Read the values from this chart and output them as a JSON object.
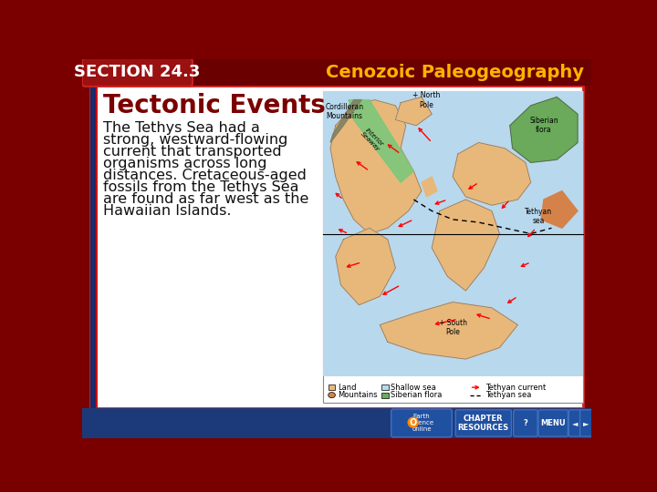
{
  "title_header": "Cenozoic Paleogeography",
  "section_label": "SECTION 24.3",
  "header_bg": "#6B0000",
  "header_text_color": "#FFB300",
  "section_text_color": "#FFFFFF",
  "slide_title": "Tectonic Events",
  "slide_title_color": "#7B0000",
  "body_text_lines": [
    "The Tethys Sea had a",
    "strong, westward-flowing",
    "current that transported",
    "organisms across long",
    "distances. Cretaceous-aged",
    "fossils from the Tethys Sea",
    "are found as far west as the",
    "Hawaiian Islands."
  ],
  "body_text_color": "#111111",
  "content_bg": "#FFFFFF",
  "main_bg": "#7A0000",
  "footer_bg": "#1C3A7A",
  "map_ocean_color": "#B8D8EE",
  "map_land_color": "#E8B87A",
  "map_mountain_color": "#D4824A",
  "map_siberian_color": "#6AAA5A",
  "map_seaway_color": "#7DC87A",
  "map_border_color": "#888888",
  "legend_land_color": "#E8B87A",
  "legend_mountain_color": "#D4824A",
  "legend_shallow_color": "#B8D8EE",
  "legend_siberian_color": "#6AAA5A",
  "header_fontsize": 14,
  "section_fontsize": 13,
  "slide_title_fontsize": 20,
  "body_fontsize": 11.5
}
